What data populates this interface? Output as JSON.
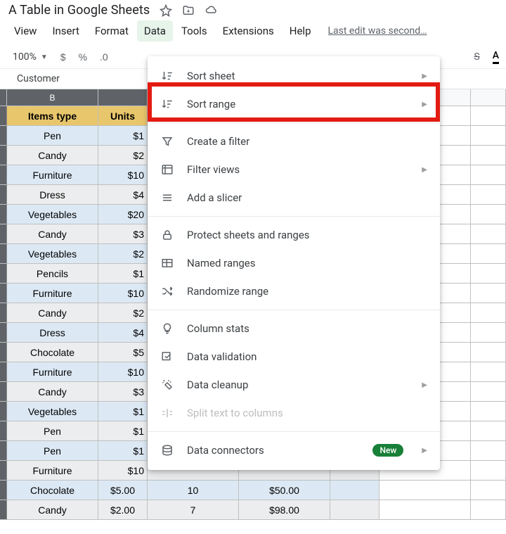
{
  "doc_title": "A Table in Google Sheets",
  "last_edit": "Last edit was second…",
  "menubar": {
    "view": "View",
    "insert": "Insert",
    "format": "Format",
    "data": "Data",
    "tools": "Tools",
    "extensions": "Extensions",
    "help": "Help"
  },
  "toolbar": {
    "zoom": "100%",
    "currency": "$",
    "percent": "%",
    "decimal": ".0",
    "strike": "S",
    "textcolor_letter": "A"
  },
  "fx_value": "Customer",
  "columns": {
    "b": "B"
  },
  "header_row": {
    "items_type": "Items type",
    "units": "Units"
  },
  "rows": [
    {
      "b": "Pen",
      "c": "$1"
    },
    {
      "b": "Candy",
      "c": "$2"
    },
    {
      "b": "Furniture",
      "c": "$10"
    },
    {
      "b": "Dress",
      "c": "$4"
    },
    {
      "b": "Vegetables",
      "c": "$20"
    },
    {
      "b": "Candy",
      "c": "$3"
    },
    {
      "b": "Vegetables",
      "c": "$2"
    },
    {
      "b": "Pencils",
      "c": "$1"
    },
    {
      "b": "Furniture",
      "c": "$10"
    },
    {
      "b": "Candy",
      "c": "$2"
    },
    {
      "b": "Dress",
      "c": "$4"
    },
    {
      "b": "Chocolate",
      "c": "$5"
    },
    {
      "b": "Furniture",
      "c": "$10"
    },
    {
      "b": "Candy",
      "c": "$3"
    },
    {
      "b": "Vegetables",
      "c": "$1"
    },
    {
      "b": "Pen",
      "c": "$1"
    },
    {
      "b": "Pen",
      "c": "$1"
    },
    {
      "b": "Furniture",
      "c": "$10"
    }
  ],
  "visible_rows": [
    {
      "b": "Chocolate",
      "c": "$5.00",
      "d": "10",
      "e": "$50.00"
    },
    {
      "b": "Candy",
      "c": "$2.00",
      "d": "7",
      "e": "$98.00"
    }
  ],
  "dropdown": {
    "sort_sheet": "Sort sheet",
    "sort_range": "Sort range",
    "create_filter": "Create a filter",
    "filter_views": "Filter views",
    "add_slicer": "Add a slicer",
    "protect": "Protect sheets and ranges",
    "named_ranges": "Named ranges",
    "randomize": "Randomize range",
    "column_stats": "Column stats",
    "data_validation": "Data validation",
    "data_cleanup": "Data cleanup",
    "split_text": "Split text to columns",
    "data_connectors": "Data connectors",
    "new_badge": "New"
  },
  "colors": {
    "highlight": "#e31b12",
    "header_bg": "#e8c66b",
    "row_even": "#ecedee",
    "row_odd": "#dce9f5",
    "colhead_bg": "#5f6368"
  }
}
